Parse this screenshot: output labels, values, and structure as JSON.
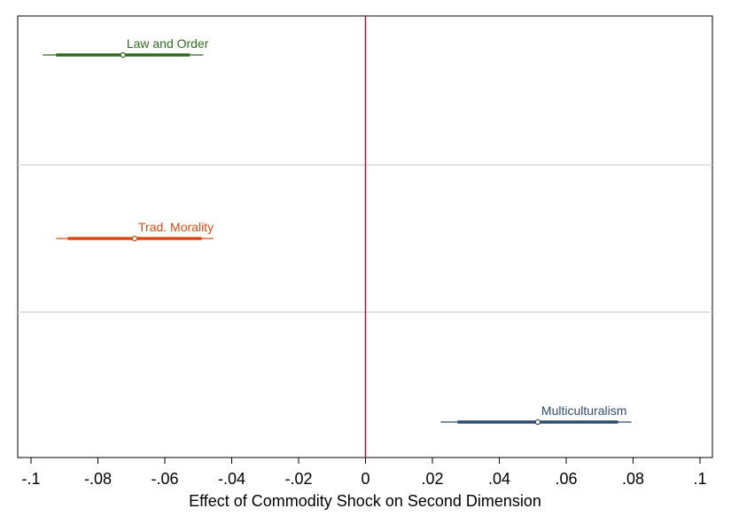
{
  "chart_data": {
    "type": "scatter",
    "subtype": "coefficient-plot",
    "xlabel": "Effect of Commodity Shock on Second Dimension",
    "ylabel": "",
    "title": "",
    "xlim": [
      -0.1,
      0.1
    ],
    "x_ticks": [
      {
        "value": -0.1,
        "label": "-.1"
      },
      {
        "value": -0.08,
        "label": "-.08"
      },
      {
        "value": -0.06,
        "label": "-.06"
      },
      {
        "value": -0.04,
        "label": "-.04"
      },
      {
        "value": -0.02,
        "label": "-.02"
      },
      {
        "value": 0,
        "label": "0"
      },
      {
        "value": 0.02,
        "label": ".02"
      },
      {
        "value": 0.04,
        "label": ".04"
      },
      {
        "value": 0.06,
        "label": ".06"
      },
      {
        "value": 0.08,
        "label": ".08"
      },
      {
        "value": 0.1,
        "label": ".1"
      }
    ],
    "reference_line": {
      "x": 0,
      "color": "#a0234a"
    },
    "grid": "horizontal panel separators",
    "series": [
      {
        "name": "Law and Order",
        "color": "#2e6b1f",
        "estimate": -0.0725,
        "ci_thick": [
          -0.0925,
          -0.0525
        ],
        "ci_thin": [
          -0.0965,
          -0.0485
        ]
      },
      {
        "name": "Trad. Morality",
        "color": "#d94a12",
        "estimate": -0.069,
        "ci_thick": [
          -0.089,
          -0.049
        ],
        "ci_thin": [
          -0.0925,
          -0.0455
        ]
      },
      {
        "name": "Multiculturalism",
        "color": "#2f4b6e",
        "estimate": 0.0515,
        "ci_thick": [
          0.0275,
          0.0755
        ],
        "ci_thin": [
          0.0225,
          0.0795
        ]
      }
    ]
  }
}
